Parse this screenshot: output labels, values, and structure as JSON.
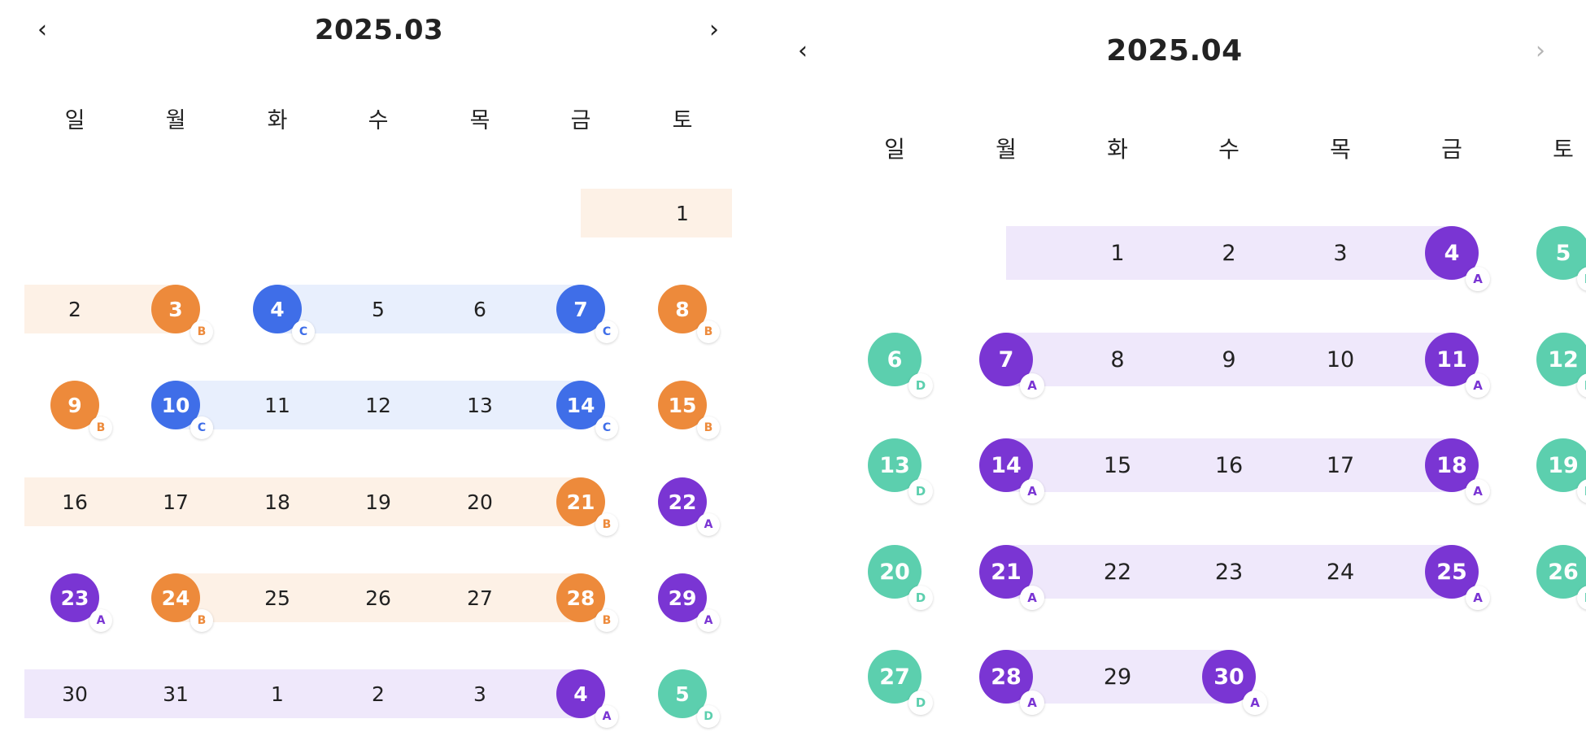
{
  "colors": {
    "A": "#7a35d3",
    "B": "#ed8a3b",
    "C": "#3f6ee8",
    "D": "#5ccfae",
    "band_A": "#efe8fb",
    "band_B": "#fdf1e6",
    "band_C": "#e8effd"
  },
  "calendars": [
    {
      "title": "2025.03",
      "prev_icon": "‹",
      "next_icon": "›",
      "next_enabled": true,
      "weekdays": [
        "일",
        "월",
        "화",
        "수",
        "목",
        "금",
        "토"
      ],
      "weeks": [
        {
          "bands": [
            {
              "from": 5,
              "to": 6,
              "type": "B"
            }
          ],
          "days": [
            null,
            null,
            null,
            null,
            null,
            null,
            {
              "n": "1"
            }
          ]
        },
        {
          "bands": [
            {
              "from": 0,
              "to": 1,
              "type": "B"
            },
            {
              "from": 2,
              "to": 5,
              "type": "C"
            }
          ],
          "days": [
            {
              "n": "2"
            },
            {
              "n": "3",
              "t": "B"
            },
            {
              "n": "4",
              "t": "C"
            },
            {
              "n": "5"
            },
            {
              "n": "6"
            },
            {
              "n": "7",
              "t": "C"
            },
            {
              "n": "8",
              "t": "B"
            }
          ]
        },
        {
          "bands": [
            {
              "from": 1,
              "to": 5,
              "type": "C"
            }
          ],
          "days": [
            {
              "n": "9",
              "t": "B"
            },
            {
              "n": "10",
              "t": "C"
            },
            {
              "n": "11"
            },
            {
              "n": "12"
            },
            {
              "n": "13"
            },
            {
              "n": "14",
              "t": "C"
            },
            {
              "n": "15",
              "t": "B"
            }
          ]
        },
        {
          "bands": [
            {
              "from": 0,
              "to": 5,
              "type": "B"
            }
          ],
          "days": [
            {
              "n": "16"
            },
            {
              "n": "17"
            },
            {
              "n": "18"
            },
            {
              "n": "19"
            },
            {
              "n": "20"
            },
            {
              "n": "21",
              "t": "B"
            },
            {
              "n": "22",
              "t": "A"
            }
          ]
        },
        {
          "bands": [
            {
              "from": 1,
              "to": 5,
              "type": "B"
            }
          ],
          "days": [
            {
              "n": "23",
              "t": "A"
            },
            {
              "n": "24",
              "t": "B"
            },
            {
              "n": "25"
            },
            {
              "n": "26"
            },
            {
              "n": "27"
            },
            {
              "n": "28",
              "t": "B"
            },
            {
              "n": "29",
              "t": "A"
            }
          ]
        },
        {
          "bands": [
            {
              "from": 0,
              "to": 5,
              "type": "A"
            }
          ],
          "days": [
            {
              "n": "30"
            },
            {
              "n": "31"
            },
            {
              "n": "1"
            },
            {
              "n": "2"
            },
            {
              "n": "3"
            },
            {
              "n": "4",
              "t": "A"
            },
            {
              "n": "5",
              "t": "D"
            }
          ]
        }
      ]
    },
    {
      "title": "2025.04",
      "prev_icon": "‹",
      "next_icon": "›",
      "next_enabled": false,
      "weekdays": [
        "일",
        "월",
        "화",
        "수",
        "목",
        "금",
        "토"
      ],
      "weeks": [
        {
          "bands": [
            {
              "from": 1,
              "to": 5,
              "type": "A"
            }
          ],
          "days": [
            null,
            null,
            {
              "n": "1"
            },
            {
              "n": "2"
            },
            {
              "n": "3"
            },
            {
              "n": "4",
              "t": "A"
            },
            {
              "n": "5",
              "t": "D"
            }
          ]
        },
        {
          "bands": [
            {
              "from": 1,
              "to": 5,
              "type": "A"
            }
          ],
          "days": [
            {
              "n": "6",
              "t": "D"
            },
            {
              "n": "7",
              "t": "A"
            },
            {
              "n": "8"
            },
            {
              "n": "9"
            },
            {
              "n": "10"
            },
            {
              "n": "11",
              "t": "A"
            },
            {
              "n": "12",
              "t": "D"
            }
          ]
        },
        {
          "bands": [
            {
              "from": 1,
              "to": 5,
              "type": "A"
            }
          ],
          "days": [
            {
              "n": "13",
              "t": "D"
            },
            {
              "n": "14",
              "t": "A"
            },
            {
              "n": "15"
            },
            {
              "n": "16"
            },
            {
              "n": "17"
            },
            {
              "n": "18",
              "t": "A"
            },
            {
              "n": "19",
              "t": "D"
            }
          ]
        },
        {
          "bands": [
            {
              "from": 1,
              "to": 5,
              "type": "A"
            }
          ],
          "days": [
            {
              "n": "20",
              "t": "D"
            },
            {
              "n": "21",
              "t": "A"
            },
            {
              "n": "22"
            },
            {
              "n": "23"
            },
            {
              "n": "24"
            },
            {
              "n": "25",
              "t": "A"
            },
            {
              "n": "26",
              "t": "D"
            }
          ]
        },
        {
          "bands": [
            {
              "from": 1,
              "to": 3,
              "type": "A"
            }
          ],
          "days": [
            {
              "n": "27",
              "t": "D"
            },
            {
              "n": "28",
              "t": "A"
            },
            {
              "n": "29"
            },
            {
              "n": "30",
              "t": "A"
            },
            null,
            null,
            null
          ]
        }
      ]
    }
  ]
}
